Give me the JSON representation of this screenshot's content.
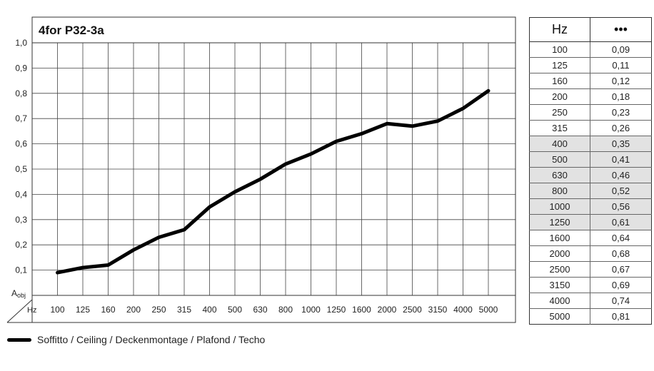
{
  "chart_data": {
    "type": "line",
    "title": "4for P32-3a",
    "ylabel": "Aobj",
    "ylabel_main": "A",
    "ylabel_sub": "obj",
    "xlabel": "Hz",
    "x": [
      "100",
      "125",
      "160",
      "200",
      "250",
      "315",
      "400",
      "500",
      "630",
      "800",
      "1000",
      "1250",
      "1600",
      "2000",
      "2500",
      "3150",
      "4000",
      "5000"
    ],
    "ylim": [
      0,
      1.0
    ],
    "yticks": [
      "0,1",
      "0,2",
      "0,3",
      "0,4",
      "0,5",
      "0,6",
      "0,7",
      "0,8",
      "0,9",
      "1,0"
    ],
    "grid": true,
    "legend_position": "bottom-left",
    "series": [
      {
        "name": "Soffitto / Ceiling / Deckenmontage / Plafond / Techo",
        "values": [
          0.09,
          0.11,
          0.12,
          0.18,
          0.23,
          0.26,
          0.35,
          0.41,
          0.46,
          0.52,
          0.56,
          0.61,
          0.64,
          0.68,
          0.67,
          0.69,
          0.74,
          0.81
        ],
        "color": "#000000"
      }
    ]
  },
  "table": {
    "header_hz": "Hz",
    "header_value": "•••",
    "rows": [
      {
        "hz": "100",
        "value": "0,09",
        "shaded": false
      },
      {
        "hz": "125",
        "value": "0,11",
        "shaded": false
      },
      {
        "hz": "160",
        "value": "0,12",
        "shaded": false
      },
      {
        "hz": "200",
        "value": "0,18",
        "shaded": false
      },
      {
        "hz": "250",
        "value": "0,23",
        "shaded": false
      },
      {
        "hz": "315",
        "value": "0,26",
        "shaded": false
      },
      {
        "hz": "400",
        "value": "0,35",
        "shaded": true
      },
      {
        "hz": "500",
        "value": "0,41",
        "shaded": true
      },
      {
        "hz": "630",
        "value": "0,46",
        "shaded": true
      },
      {
        "hz": "800",
        "value": "0,52",
        "shaded": true
      },
      {
        "hz": "1000",
        "value": "0,56",
        "shaded": true
      },
      {
        "hz": "1250",
        "value": "0,61",
        "shaded": true
      },
      {
        "hz": "1600",
        "value": "0,64",
        "shaded": false
      },
      {
        "hz": "2000",
        "value": "0,68",
        "shaded": false
      },
      {
        "hz": "2500",
        "value": "0,67",
        "shaded": false
      },
      {
        "hz": "3150",
        "value": "0,69",
        "shaded": false
      },
      {
        "hz": "4000",
        "value": "0,74",
        "shaded": false
      },
      {
        "hz": "5000",
        "value": "0,81",
        "shaded": false
      }
    ]
  },
  "legend": {
    "label": "Soffitto / Ceiling / Deckenmontage / Plafond / Techo"
  },
  "colors": {
    "line": "#000000",
    "grid": "#444444",
    "shaded_row": "#e2e2e2"
  }
}
